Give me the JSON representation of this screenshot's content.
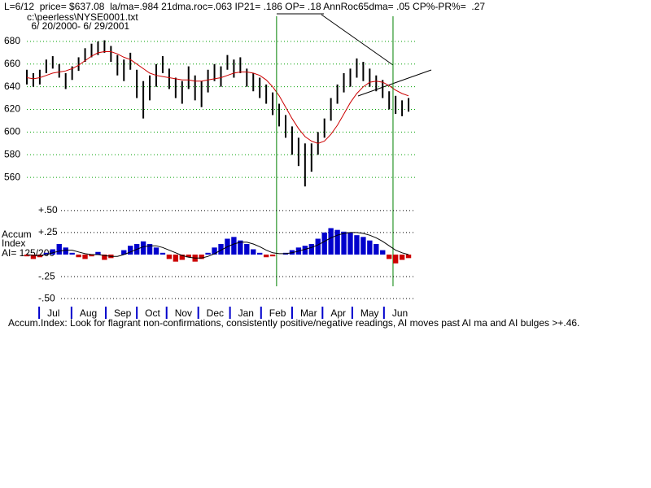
{
  "header": [
    "L=6/12  price= $637.08  la/ma=.984 21dma.roc=.063 IP21= .186 OP= .18 AnnRoc65dma= .05 CP%-PR%=  .27",
    "c:\\peerless\\NYSE0001.txt",
    " 6/ 20/2000- 6/ 29/2001"
  ],
  "footer": "Accum.Index: Look for flagrant non-confirmations, consistently positive/negative readings, AI moves past AI ma and AI bulges >+.46.",
  "chart_data": [
    {
      "type": "range_bar",
      "x": [
        0,
        1,
        2,
        3,
        4,
        5,
        6,
        7,
        8,
        9,
        10,
        11,
        12,
        13,
        14,
        15,
        16,
        17,
        18,
        19,
        20,
        21,
        22,
        23,
        24,
        25,
        26,
        27,
        28,
        29,
        30,
        31,
        32,
        33,
        34,
        35,
        36,
        37,
        38,
        39,
        40,
        41,
        42,
        43,
        44,
        45,
        46,
        47,
        48,
        49,
        50,
        51,
        52,
        53,
        54,
        55,
        56,
        57,
        58,
        59
      ],
      "high": [
        655,
        652,
        655,
        664,
        667,
        660,
        652,
        658,
        666,
        674,
        678,
        680,
        681,
        676,
        668,
        664,
        670,
        655,
        645,
        650,
        660,
        667,
        656,
        648,
        645,
        658,
        650,
        645,
        655,
        660,
        658,
        668,
        664,
        666,
        656,
        652,
        648,
        642,
        635,
        625,
        615,
        605,
        595,
        590,
        590,
        600,
        612,
        630,
        642,
        652,
        656,
        665,
        662,
        656,
        650,
        646,
        636,
        632,
        628,
        630
      ],
      "low": [
        642,
        640,
        642,
        652,
        656,
        648,
        638,
        646,
        654,
        662,
        666,
        668,
        670,
        662,
        650,
        645,
        655,
        630,
        612,
        628,
        640,
        652,
        638,
        630,
        625,
        638,
        628,
        622,
        635,
        645,
        640,
        655,
        648,
        652,
        640,
        636,
        630,
        625,
        615,
        605,
        595,
        580,
        570,
        552,
        565,
        580,
        595,
        610,
        625,
        635,
        640,
        648,
        645,
        640,
        636,
        630,
        620,
        616,
        614,
        618
      ],
      "color": "#000000",
      "ma": [
        648,
        647,
        648,
        650,
        652,
        653,
        654,
        656,
        659,
        663,
        667,
        670,
        671,
        671,
        669,
        666,
        664,
        660,
        656,
        652,
        650,
        649,
        648,
        647,
        646,
        646,
        645,
        645,
        646,
        647,
        648,
        650,
        652,
        653,
        653,
        652,
        650,
        646,
        640,
        632,
        622,
        612,
        603,
        596,
        592,
        590,
        592,
        598,
        606,
        616,
        626,
        634,
        640,
        644,
        645,
        644,
        641,
        637,
        634,
        632
      ],
      "ma_color": "#cc0000",
      "xlim": [
        0,
        60
      ],
      "ylim": [
        545,
        690
      ],
      "yticks": [
        560,
        580,
        600,
        620,
        640,
        660,
        680
      ],
      "grid": true,
      "grid_color": "#00a000",
      "vlines": [
        38.6,
        56.6
      ],
      "vline_color": "#008000"
    },
    {
      "type": "histogram_line",
      "ylabel": [
        "Accum",
        "Index",
        "AI= 125/200"
      ],
      "x": [
        0,
        1,
        2,
        3,
        4,
        5,
        6,
        7,
        8,
        9,
        10,
        11,
        12,
        13,
        14,
        15,
        16,
        17,
        18,
        19,
        20,
        21,
        22,
        23,
        24,
        25,
        26,
        27,
        28,
        29,
        30,
        31,
        32,
        33,
        34,
        35,
        36,
        37,
        38,
        39,
        40,
        41,
        42,
        43,
        44,
        45,
        46,
        47,
        48,
        49,
        50,
        51,
        52,
        53,
        54,
        55,
        56,
        57,
        58,
        59
      ],
      "values": [
        -0.02,
        -0.05,
        -0.03,
        0.02,
        0.06,
        0.12,
        0.08,
        0.02,
        -0.03,
        -0.05,
        -0.02,
        0.03,
        -0.06,
        -0.04,
        0.0,
        0.05,
        0.1,
        0.12,
        0.15,
        0.12,
        0.08,
        0.02,
        -0.05,
        -0.08,
        -0.06,
        -0.03,
        -0.08,
        -0.05,
        0.02,
        0.08,
        0.12,
        0.18,
        0.2,
        0.16,
        0.12,
        0.06,
        0.02,
        -0.03,
        -0.02,
        0.0,
        0.02,
        0.05,
        0.08,
        0.1,
        0.12,
        0.18,
        0.25,
        0.3,
        0.28,
        0.26,
        0.25,
        0.22,
        0.2,
        0.16,
        0.12,
        0.05,
        -0.05,
        -0.1,
        -0.06,
        -0.04
      ],
      "positive_color": "#0000cc",
      "negative_color": "#cc0000",
      "ma": [
        0.0,
        -0.01,
        -0.01,
        0.0,
        0.02,
        0.04,
        0.05,
        0.05,
        0.03,
        0.01,
        0.0,
        0.0,
        -0.01,
        -0.02,
        -0.02,
        0.0,
        0.03,
        0.06,
        0.09,
        0.1,
        0.1,
        0.08,
        0.05,
        0.02,
        -0.01,
        -0.03,
        -0.04,
        -0.04,
        -0.02,
        0.01,
        0.05,
        0.09,
        0.12,
        0.14,
        0.14,
        0.12,
        0.09,
        0.05,
        0.02,
        0.01,
        0.01,
        0.02,
        0.04,
        0.06,
        0.08,
        0.11,
        0.15,
        0.19,
        0.22,
        0.24,
        0.25,
        0.25,
        0.24,
        0.22,
        0.19,
        0.15,
        0.1,
        0.05,
        0.02,
        0.0
      ],
      "ma_color": "#000000",
      "xlim": [
        0,
        60
      ],
      "ylim": [
        -0.6,
        0.6
      ],
      "yticks": [
        {
          "value": 0.5,
          "label": "+.50"
        },
        {
          "value": 0.25,
          "label": "+.25"
        },
        {
          "value": -0.25,
          "label": "-.25"
        },
        {
          "value": -0.5,
          "label": "-.50"
        }
      ],
      "grid": true,
      "grid_color": "#000000",
      "xticks": [
        {
          "value": 1.9,
          "label": "Jul"
        },
        {
          "value": 6.9,
          "label": "Aug"
        },
        {
          "value": 12.2,
          "label": "Sep"
        },
        {
          "value": 17,
          "label": "Oct"
        },
        {
          "value": 21.6,
          "label": "Nov"
        },
        {
          "value": 26.5,
          "label": "Dec"
        },
        {
          "value": 31.4,
          "label": "Jan"
        },
        {
          "value": 36.2,
          "label": "Feb"
        },
        {
          "value": 41,
          "label": "Mar"
        },
        {
          "value": 45.7,
          "label": "Apr"
        },
        {
          "value": 50.3,
          "label": "May"
        },
        {
          "value": 55.2,
          "label": "Jun"
        }
      ],
      "xtick_color": "#0000cc"
    }
  ]
}
